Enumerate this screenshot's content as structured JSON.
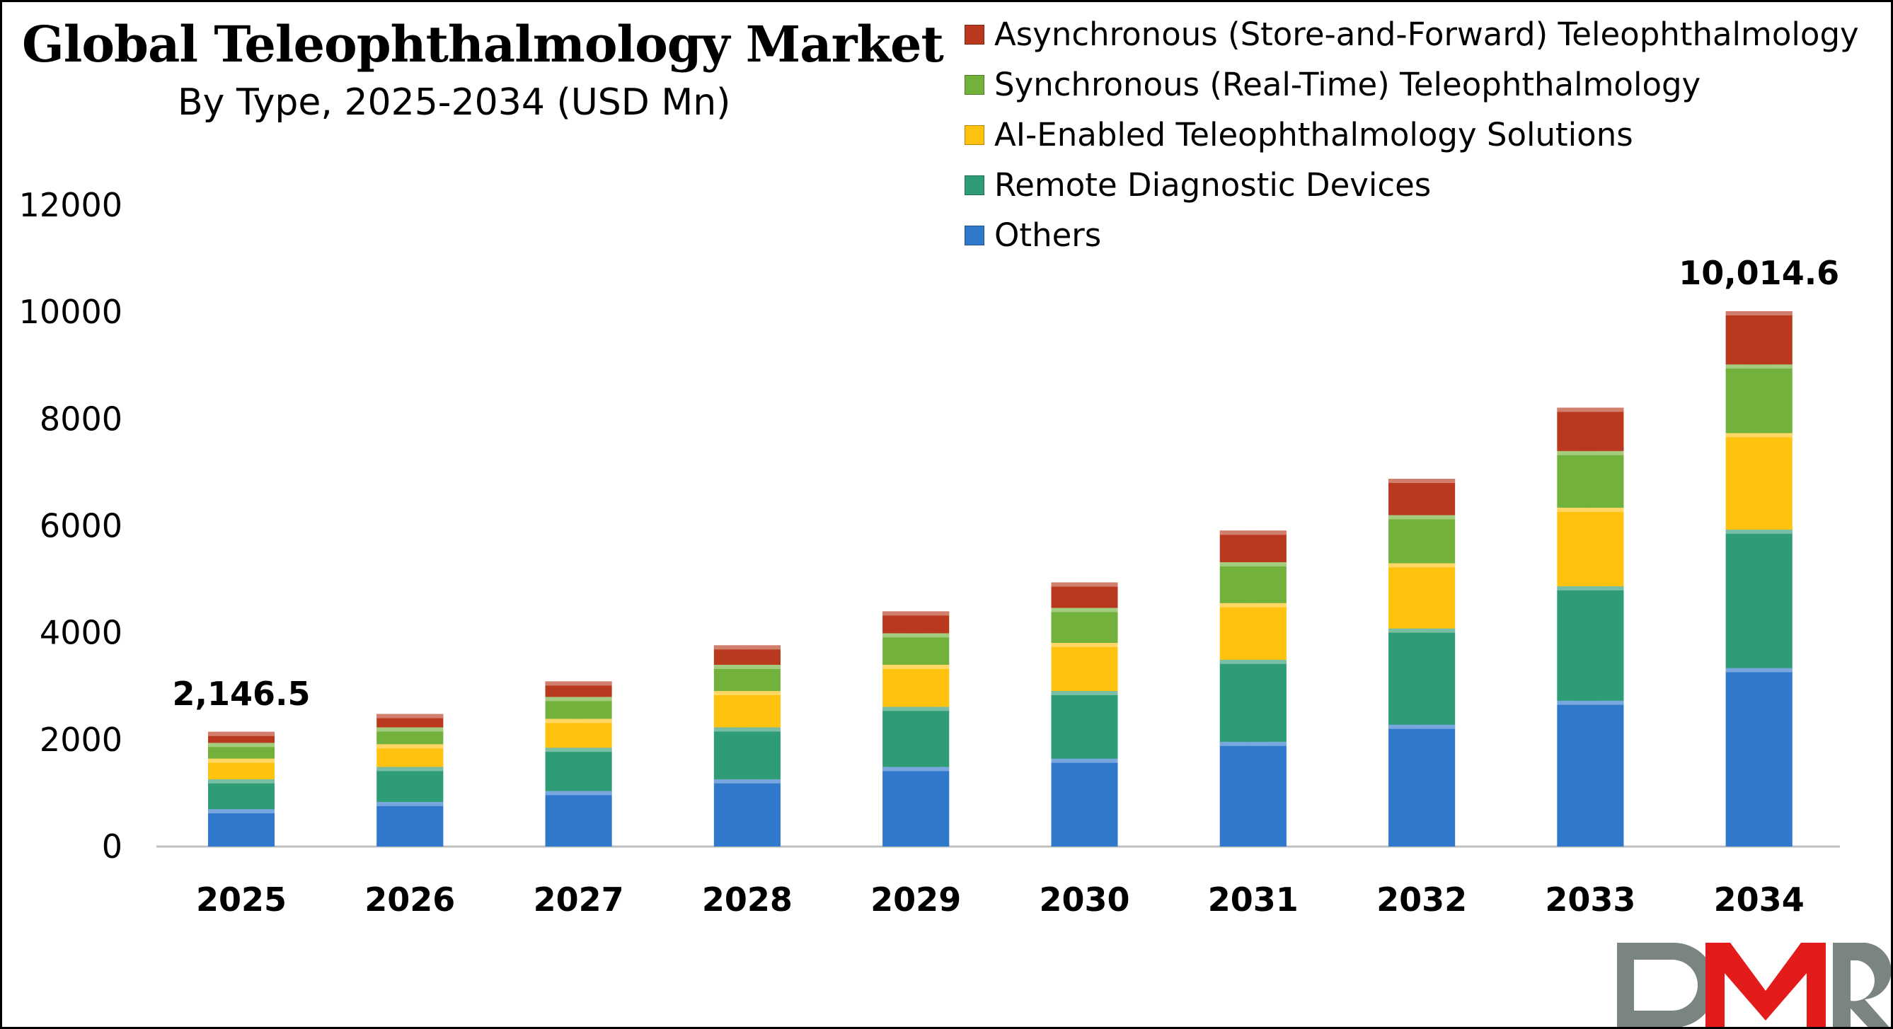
{
  "title": "Global Teleophthalmology Market",
  "subtitle": "By Type, 2025-2034 (USD Mn)",
  "logo_text": "DMR",
  "chart_data": {
    "type": "bar",
    "stacked": true,
    "title": "Global Teleophthalmology Market",
    "subtitle": "By Type, 2025-2034 (USD Mn)",
    "xlabel": "",
    "ylabel": "",
    "ylim": [
      0,
      12000
    ],
    "yticks": [
      0,
      2000,
      4000,
      6000,
      8000,
      10000,
      12000
    ],
    "grid": false,
    "legend_position": "top-right",
    "categories": [
      "2025",
      "2026",
      "2027",
      "2028",
      "2029",
      "2030",
      "2031",
      "2032",
      "2033",
      "2034"
    ],
    "series": [
      {
        "name": "Others",
        "color": "#2F78CC",
        "values": [
          700,
          835,
          1040,
          1260,
          1490,
          1645,
          1960,
          2280,
          2730,
          3340
        ]
      },
      {
        "name": "Remote Diagnostic Devices",
        "color": "#2E9C74",
        "values": [
          560,
          655,
          810,
          970,
          1125,
          1265,
          1535,
          1800,
          2140,
          2590
        ]
      },
      {
        "name": "AI-Enabled Teleophthalmology Solutions",
        "color": "#FFC20E",
        "values": [
          386,
          425,
          540,
          680,
          785,
          900,
          1060,
          1220,
          1470,
          1805
        ]
      },
      {
        "name": "Synchronous (Real-Time) Teleophthalmology",
        "color": "#72B13B",
        "values": [
          294,
          315,
          410,
          490,
          590,
          655,
          765,
          900,
          1060,
          1285
        ]
      },
      {
        "name": "Asynchronous (Store-and-Forward) Teleophthalmology",
        "color": "#B8391E",
        "values": [
          206,
          250,
          290,
          365,
          410,
          475,
          590,
          680,
          810,
          995
        ]
      }
    ],
    "data_labels": [
      {
        "category": "2025",
        "text": "2,146.5"
      },
      {
        "category": "2034",
        "text": "10,014.6"
      }
    ]
  }
}
